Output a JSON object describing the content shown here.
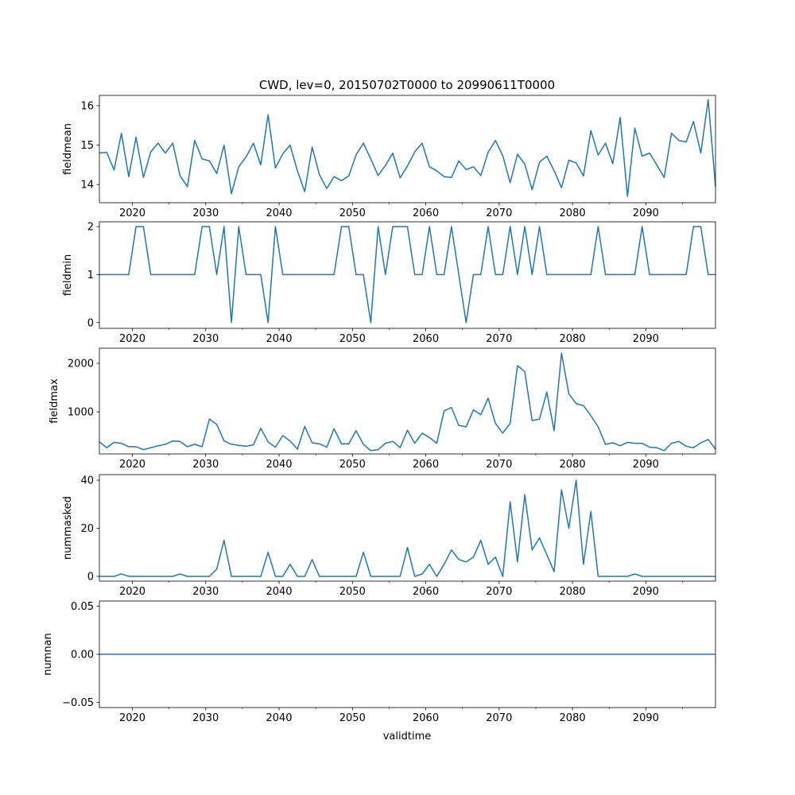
{
  "chart_data": {
    "type": "line",
    "title": "CWD, lev=0, 20150702T0000 to 20990611T0000",
    "xlabel": "validtime",
    "x_start": 2015.5,
    "x_step": 1,
    "xlim": [
      2015.5,
      2099.5
    ],
    "xticks": [
      2020,
      2030,
      2040,
      2050,
      2060,
      2070,
      2080,
      2090
    ],
    "xtick_labels": [
      "2020",
      "2030",
      "2040",
      "2050",
      "2060",
      "2070",
      "2080",
      "2090"
    ],
    "minor_xticks": [
      2025,
      2035,
      2045,
      2055,
      2065,
      2075,
      2085,
      2095
    ],
    "line_color": "#1f77b4",
    "panels": [
      {
        "ylabel": "fieldmean",
        "ylim": [
          13.54,
          16.26
        ],
        "yticks": [
          14,
          15,
          16
        ],
        "ytick_labels": [
          "14",
          "15",
          "16"
        ],
        "values": [
          14.8,
          14.82,
          14.37,
          15.3,
          14.2,
          15.2,
          14.18,
          14.83,
          15.05,
          14.8,
          15.05,
          14.22,
          13.95,
          15.12,
          14.65,
          14.6,
          14.28,
          15.0,
          13.77,
          14.45,
          14.7,
          15.05,
          14.5,
          15.77,
          14.42,
          14.78,
          15.0,
          14.35,
          13.82,
          14.95,
          14.25,
          13.9,
          14.2,
          14.1,
          14.22,
          14.75,
          15.05,
          14.65,
          14.23,
          14.48,
          14.8,
          14.17,
          14.47,
          14.83,
          15.05,
          14.45,
          14.35,
          14.2,
          14.18,
          14.6,
          14.38,
          14.45,
          14.23,
          14.82,
          15.12,
          14.73,
          14.05,
          14.77,
          14.52,
          13.87,
          14.57,
          14.72,
          14.35,
          13.92,
          14.62,
          14.55,
          14.22,
          15.37,
          14.75,
          15.05,
          14.53,
          15.7,
          13.7,
          15.43,
          14.72,
          14.8,
          14.5,
          14.18,
          15.3,
          15.12,
          15.08,
          15.6,
          14.8,
          16.15,
          13.95
        ]
      },
      {
        "ylabel": "fieldmin",
        "ylim": [
          -0.12,
          2.1
        ],
        "yticks": [
          0,
          1,
          2
        ],
        "ytick_labels": [
          "0",
          "1",
          "2"
        ],
        "values": [
          1,
          1,
          1,
          1,
          1,
          2,
          2,
          1,
          1,
          1,
          1,
          1,
          1,
          1,
          2,
          2,
          1,
          2,
          0,
          2,
          1,
          1,
          1,
          0,
          2,
          1,
          1,
          1,
          1,
          1,
          1,
          1,
          1,
          2,
          2,
          1,
          1,
          0,
          2,
          1,
          2,
          2,
          2,
          1,
          1,
          2,
          1,
          1,
          2,
          1,
          0,
          1,
          1,
          2,
          1,
          1,
          2,
          1,
          2,
          1,
          2,
          1,
          1,
          1,
          1,
          1,
          1,
          1,
          2,
          1,
          1,
          1,
          1,
          1,
          2,
          1,
          1,
          1,
          1,
          1,
          1,
          2,
          2,
          1,
          1
        ]
      },
      {
        "ylabel": "fieldmax",
        "ylim": [
          131,
          2311
        ],
        "yticks": [
          1000,
          2000
        ],
        "ytick_labels": [
          "1000",
          "2000"
        ],
        "values": [
          380,
          260,
          370,
          350,
          280,
          280,
          220,
          260,
          300,
          330,
          400,
          390,
          280,
          330,
          280,
          850,
          740,
          400,
          330,
          310,
          290,
          320,
          660,
          380,
          270,
          510,
          400,
          230,
          700,
          360,
          340,
          270,
          650,
          340,
          340,
          610,
          330,
          200,
          220,
          350,
          390,
          260,
          620,
          350,
          560,
          470,
          350,
          1020,
          1090,
          720,
          690,
          1040,
          940,
          1280,
          760,
          560,
          760,
          1950,
          1830,
          820,
          850,
          1410,
          610,
          2210,
          1370,
          1170,
          1130,
          920,
          690,
          330,
          360,
          300,
          370,
          350,
          350,
          270,
          260,
          200,
          350,
          390,
          290,
          260,
          360,
          430,
          230
        ]
      },
      {
        "ylabel": "nummasked",
        "ylim": [
          -2,
          42.3
        ],
        "yticks": [
          0,
          20,
          40
        ],
        "ytick_labels": [
          "0",
          "20",
          "40"
        ],
        "values": [
          0,
          0,
          0,
          1,
          0,
          0,
          0,
          0,
          0,
          0,
          0,
          1,
          0,
          0,
          0,
          0,
          3,
          15,
          0,
          0,
          0,
          0,
          0,
          10,
          0,
          0,
          5,
          0,
          0,
          7,
          0,
          0,
          0,
          0,
          0,
          0,
          10,
          0,
          0,
          0,
          0,
          0,
          12,
          0,
          1,
          5,
          0,
          5,
          11,
          7,
          6,
          8,
          15,
          5,
          8,
          0,
          31,
          6,
          34,
          11,
          16,
          9,
          2,
          36,
          20,
          40,
          5,
          27,
          0,
          0,
          0,
          0,
          0,
          1,
          0,
          0,
          0,
          0,
          0,
          0,
          0,
          0,
          0,
          0,
          0
        ]
      },
      {
        "ylabel": "numnan",
        "ylim": [
          -0.0555,
          0.0555
        ],
        "yticks": [
          -0.05,
          0.0,
          0.05
        ],
        "ytick_labels": [
          "−0.05",
          "0.00",
          "0.05"
        ],
        "values": [
          0,
          0,
          0,
          0,
          0,
          0,
          0,
          0,
          0,
          0,
          0,
          0,
          0,
          0,
          0,
          0,
          0,
          0,
          0,
          0,
          0,
          0,
          0,
          0,
          0,
          0,
          0,
          0,
          0,
          0,
          0,
          0,
          0,
          0,
          0,
          0,
          0,
          0,
          0,
          0,
          0,
          0,
          0,
          0,
          0,
          0,
          0,
          0,
          0,
          0,
          0,
          0,
          0,
          0,
          0,
          0,
          0,
          0,
          0,
          0,
          0,
          0,
          0,
          0,
          0,
          0,
          0,
          0,
          0,
          0,
          0,
          0,
          0,
          0,
          0,
          0,
          0,
          0,
          0,
          0,
          0,
          0,
          0,
          0,
          0
        ]
      }
    ]
  }
}
